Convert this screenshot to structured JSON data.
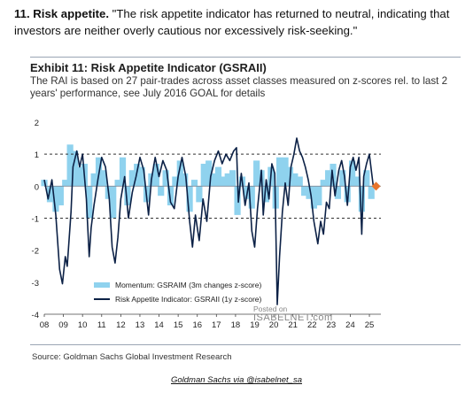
{
  "intro": {
    "label": "11. Risk appetite.",
    "quote": " \"The risk appetite indicator has returned to neutral, indicating that investors are neither overly cautious nor excessively risk-seeking.\""
  },
  "exhibit": {
    "title": "Exhibit 11: Risk Appetite Indicator (GSRAII)",
    "subtitle": "The RAI is based on 27 pair-trades across asset classes measured on z-scores rel. to last 2 years' performance, see July 2016 GOAL for details"
  },
  "source": "Source: Goldman Sachs Global Investment Research",
  "credit": "Goldman Sachs via @isabelnet_sa",
  "watermark": {
    "line1": "Posted on",
    "line2": "ISABELNET.com"
  },
  "colors": {
    "line": "#0c2146",
    "momentum": "#8fd2ee",
    "marker": "#e8742c",
    "refline": "#333333"
  },
  "chart_data": {
    "type": "line",
    "x_ticks": [
      "08",
      "09",
      "10",
      "11",
      "12",
      "13",
      "14",
      "15",
      "16",
      "17",
      "18",
      "19",
      "20",
      "21",
      "22",
      "23",
      "24",
      "25"
    ],
    "y_ticks": [
      "2",
      "1",
      "0",
      "-1",
      "-2",
      "-3",
      "-4"
    ],
    "ylim": [
      -4,
      2
    ],
    "xlim": [
      2008.0,
      2025.6
    ],
    "reference_lines": [
      1,
      -1
    ],
    "legend": [
      "Momentum: GSRAIM (3m changes z-score)",
      "Risk Appetite Indicator: GSRAII (1y z-score)"
    ],
    "legend_position": "bottom-left",
    "series": [
      {
        "name": "Risk Appetite Indicator: GSRAII (1y z-score)",
        "kind": "line",
        "points": [
          [
            2008.0,
            0.2
          ],
          [
            2008.2,
            -0.4
          ],
          [
            2008.4,
            0.2
          ],
          [
            2008.6,
            -0.9
          ],
          [
            2008.8,
            -2.6
          ],
          [
            2008.95,
            -3.05
          ],
          [
            2009.1,
            -2.2
          ],
          [
            2009.2,
            -2.5
          ],
          [
            2009.4,
            -0.8
          ],
          [
            2009.5,
            0.6
          ],
          [
            2009.7,
            1.1
          ],
          [
            2009.85,
            0.6
          ],
          [
            2010.0,
            1.0
          ],
          [
            2010.2,
            -0.4
          ],
          [
            2010.35,
            -2.2
          ],
          [
            2010.45,
            -1.3
          ],
          [
            2010.6,
            -0.6
          ],
          [
            2010.8,
            0.2
          ],
          [
            2011.0,
            0.9
          ],
          [
            2011.2,
            0.6
          ],
          [
            2011.4,
            -0.4
          ],
          [
            2011.55,
            -1.9
          ],
          [
            2011.7,
            -2.4
          ],
          [
            2011.85,
            -1.6
          ],
          [
            2012.0,
            -0.4
          ],
          [
            2012.2,
            0.3
          ],
          [
            2012.4,
            -1.0
          ],
          [
            2012.6,
            -0.2
          ],
          [
            2012.8,
            0.3
          ],
          [
            2013.0,
            0.9
          ],
          [
            2013.2,
            0.5
          ],
          [
            2013.45,
            -0.9
          ],
          [
            2013.6,
            0.2
          ],
          [
            2013.8,
            0.9
          ],
          [
            2014.0,
            0.3
          ],
          [
            2014.2,
            0.8
          ],
          [
            2014.4,
            0.5
          ],
          [
            2014.6,
            -0.5
          ],
          [
            2014.8,
            -0.7
          ],
          [
            2015.0,
            0.3
          ],
          [
            2015.2,
            0.9
          ],
          [
            2015.4,
            0.3
          ],
          [
            2015.6,
            -1.1
          ],
          [
            2015.75,
            -1.9
          ],
          [
            2015.9,
            -0.9
          ],
          [
            2016.1,
            -1.7
          ],
          [
            2016.3,
            -0.4
          ],
          [
            2016.5,
            -1.1
          ],
          [
            2016.7,
            0.3
          ],
          [
            2016.9,
            0.8
          ],
          [
            2017.1,
            1.1
          ],
          [
            2017.3,
            0.7
          ],
          [
            2017.5,
            1.0
          ],
          [
            2017.7,
            0.8
          ],
          [
            2017.9,
            1.1
          ],
          [
            2018.05,
            1.2
          ],
          [
            2018.15,
            -0.5
          ],
          [
            2018.3,
            0.4
          ],
          [
            2018.5,
            -0.6
          ],
          [
            2018.7,
            0.1
          ],
          [
            2018.85,
            -1.4
          ],
          [
            2019.0,
            -1.9
          ],
          [
            2019.15,
            -0.7
          ],
          [
            2019.35,
            0.5
          ],
          [
            2019.45,
            -0.9
          ],
          [
            2019.6,
            0.2
          ],
          [
            2019.75,
            -0.4
          ],
          [
            2019.9,
            0.7
          ],
          [
            2020.05,
            0.4
          ],
          [
            2020.18,
            -3.7
          ],
          [
            2020.3,
            -2.2
          ],
          [
            2020.45,
            -0.8
          ],
          [
            2020.6,
            0.1
          ],
          [
            2020.75,
            -0.6
          ],
          [
            2020.9,
            0.6
          ],
          [
            2021.05,
            1.0
          ],
          [
            2021.2,
            1.5
          ],
          [
            2021.35,
            1.1
          ],
          [
            2021.5,
            0.9
          ],
          [
            2021.65,
            0.6
          ],
          [
            2021.8,
            0.2
          ],
          [
            2021.95,
            -0.3
          ],
          [
            2022.1,
            -1.1
          ],
          [
            2022.3,
            -1.8
          ],
          [
            2022.45,
            -1.1
          ],
          [
            2022.6,
            -1.5
          ],
          [
            2022.75,
            -0.5
          ],
          [
            2022.9,
            -0.7
          ],
          [
            2023.05,
            0.5
          ],
          [
            2023.2,
            -0.3
          ],
          [
            2023.4,
            0.5
          ],
          [
            2023.55,
            0.8
          ],
          [
            2023.7,
            0.3
          ],
          [
            2023.85,
            -0.6
          ],
          [
            2024.0,
            0.6
          ],
          [
            2024.15,
            0.9
          ],
          [
            2024.3,
            0.5
          ],
          [
            2024.45,
            0.9
          ],
          [
            2024.6,
            -1.5
          ],
          [
            2024.7,
            0.3
          ],
          [
            2024.85,
            0.7
          ],
          [
            2025.0,
            1.0
          ],
          [
            2025.1,
            0.5
          ],
          [
            2025.2,
            0.0
          ]
        ]
      },
      {
        "name": "Momentum: GSRAIM (3m changes z-score)",
        "kind": "bars",
        "points": [
          [
            2008.0,
            0.2
          ],
          [
            2008.3,
            -0.5
          ],
          [
            2008.6,
            -0.8
          ],
          [
            2008.85,
            -0.6
          ],
          [
            2009.1,
            0.2
          ],
          [
            2009.35,
            1.3
          ],
          [
            2009.6,
            1.1
          ],
          [
            2009.85,
            0.6
          ],
          [
            2010.1,
            0.7
          ],
          [
            2010.35,
            -1.0
          ],
          [
            2010.6,
            0.4
          ],
          [
            2010.85,
            0.9
          ],
          [
            2011.1,
            0.5
          ],
          [
            2011.35,
            -0.4
          ],
          [
            2011.6,
            -1.0
          ],
          [
            2011.85,
            0.2
          ],
          [
            2012.1,
            0.9
          ],
          [
            2012.35,
            -0.6
          ],
          [
            2012.6,
            0.5
          ],
          [
            2012.85,
            0.7
          ],
          [
            2013.1,
            0.6
          ],
          [
            2013.35,
            -0.5
          ],
          [
            2013.6,
            0.4
          ],
          [
            2013.85,
            0.7
          ],
          [
            2014.1,
            -0.3
          ],
          [
            2014.35,
            0.5
          ],
          [
            2014.6,
            -0.6
          ],
          [
            2014.85,
            0.3
          ],
          [
            2015.1,
            0.8
          ],
          [
            2015.35,
            0.4
          ],
          [
            2015.6,
            -0.8
          ],
          [
            2015.85,
            0.2
          ],
          [
            2016.1,
            -0.5
          ],
          [
            2016.35,
            0.7
          ],
          [
            2016.6,
            0.8
          ],
          [
            2016.85,
            0.4
          ],
          [
            2017.1,
            0.6
          ],
          [
            2017.35,
            0.3
          ],
          [
            2017.6,
            0.4
          ],
          [
            2017.85,
            0.5
          ],
          [
            2018.1,
            -0.9
          ],
          [
            2018.35,
            0.3
          ],
          [
            2018.6,
            -0.4
          ],
          [
            2018.85,
            -0.7
          ],
          [
            2019.1,
            0.8
          ],
          [
            2019.35,
            0.5
          ],
          [
            2019.6,
            -0.5
          ],
          [
            2019.85,
            0.6
          ],
          [
            2020.1,
            -0.7
          ],
          [
            2020.3,
            0.9
          ],
          [
            2020.6,
            0.9
          ],
          [
            2020.85,
            0.6
          ],
          [
            2021.1,
            0.4
          ],
          [
            2021.35,
            0.3
          ],
          [
            2021.6,
            -0.3
          ],
          [
            2021.85,
            -0.4
          ],
          [
            2022.1,
            -0.7
          ],
          [
            2022.35,
            -0.6
          ],
          [
            2022.6,
            0.2
          ],
          [
            2022.85,
            0.5
          ],
          [
            2023.1,
            0.7
          ],
          [
            2023.35,
            -0.4
          ],
          [
            2023.6,
            0.5
          ],
          [
            2023.85,
            -0.5
          ],
          [
            2024.1,
            0.8
          ],
          [
            2024.35,
            0.3
          ],
          [
            2024.6,
            -0.8
          ],
          [
            2024.85,
            0.5
          ],
          [
            2025.1,
            -0.4
          ]
        ]
      }
    ],
    "latest_point": {
      "x": 2025.35,
      "y": 0.0
    }
  }
}
